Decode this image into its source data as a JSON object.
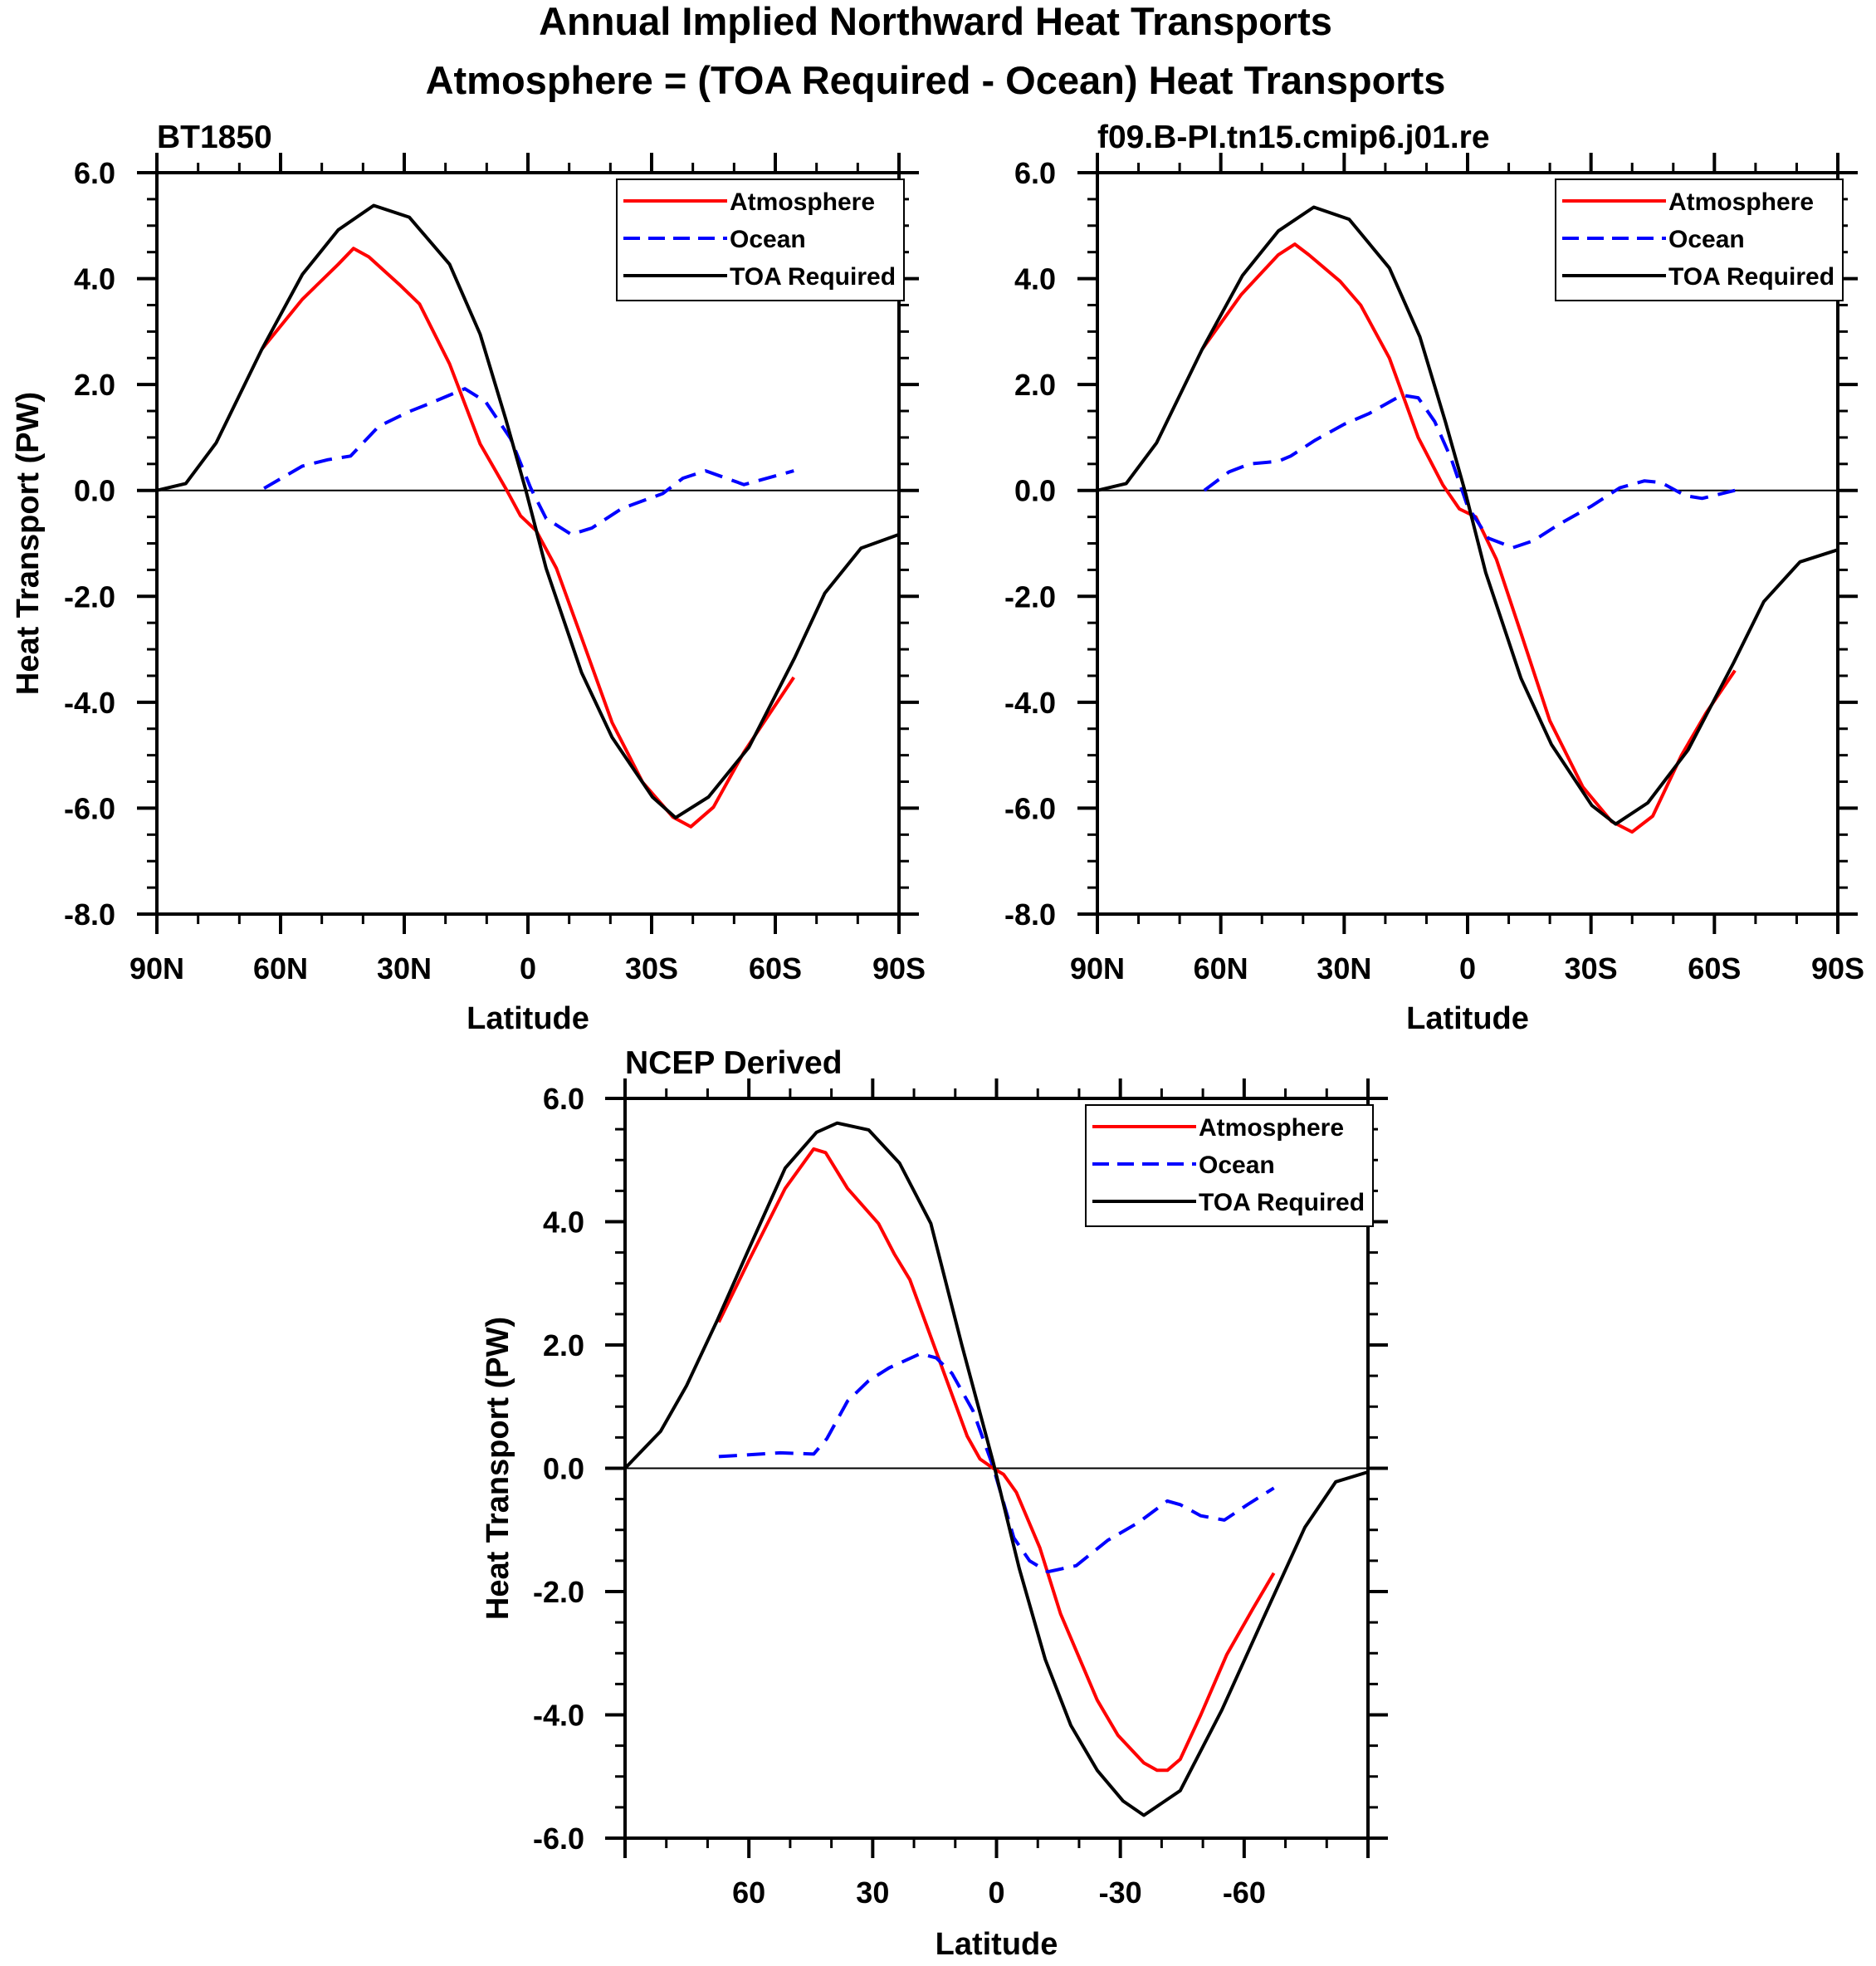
{
  "figure": {
    "title_line1": "Annual Implied Northward Heat Transports",
    "title_line2": "Atmosphere = (TOA Required - Ocean) Heat Transports"
  },
  "colors": {
    "atmosphere": "#ff0000",
    "ocean": "#0000ff",
    "toa": "#000000"
  },
  "chart_data": [
    {
      "type": "line",
      "title": "BT1850",
      "xlabel": "Latitude",
      "ylabel": "Heat Transport (PW)",
      "xlim": [
        90,
        -90
      ],
      "ylim": [
        -8,
        6
      ],
      "x_ticks": [
        90,
        60,
        30,
        0,
        -30,
        -60,
        -90
      ],
      "x_tick_labels": [
        "90N",
        "60N",
        "30N",
        "0",
        "30S",
        "60S",
        "90S"
      ],
      "y_ticks": [
        6,
        4,
        2,
        0,
        -2,
        -4,
        -6,
        -8
      ],
      "y_tick_labels": [
        "6.0",
        "4.0",
        "2.0",
        "0.0",
        "-2.0",
        "-4.0",
        "-6.0",
        "-8.0"
      ],
      "show_ylabel": true,
      "legend": "top-right",
      "series": [
        {
          "name": "Atmosphere",
          "style": "solid",
          "color_key": "atmosphere",
          "x": [
            64.5,
            54.7,
            46,
            42.3,
            38.6,
            31.2,
            26.3,
            19,
            11.6,
            5.4,
            1.8,
            -2,
            -6.9,
            -13,
            -20.4,
            -27.8,
            -35.2,
            -39.5,
            -45,
            -52.4,
            -64.5
          ],
          "y": [
            2.67,
            3.61,
            4.27,
            4.57,
            4.41,
            3.89,
            3.52,
            2.39,
            0.88,
            0.04,
            -0.48,
            -0.76,
            -1.47,
            -2.78,
            -4.38,
            -5.51,
            -6.17,
            -6.35,
            -5.98,
            -4.94,
            -3.53
          ]
        },
        {
          "name": "Ocean",
          "style": "dashed",
          "color_key": "ocean",
          "x": [
            64,
            54.7,
            48.5,
            43,
            36.2,
            28.8,
            23.9,
            15.3,
            10.3,
            4.2,
            -0.7,
            -4.4,
            -10.5,
            -15.5,
            -22.8,
            -32.7,
            -37.6,
            -43.1,
            -52.4,
            -64.5
          ],
          "y": [
            0.04,
            0.46,
            0.58,
            0.65,
            1.21,
            1.49,
            1.64,
            1.92,
            1.68,
            0.98,
            0.04,
            -0.53,
            -0.83,
            -0.71,
            -0.34,
            -0.06,
            0.23,
            0.37,
            0.11,
            0.37
          ]
        },
        {
          "name": "TOA Required",
          "style": "solid",
          "color_key": "toa",
          "x": [
            90,
            83,
            75.6,
            64.5,
            54.7,
            46,
            37.4,
            28.8,
            19,
            11.6,
            5.4,
            0.5,
            -4.4,
            -13,
            -20.4,
            -30.2,
            -35.8,
            -43.8,
            -53.6,
            -64.7,
            -72,
            -80.8,
            -90
          ],
          "y": [
            0,
            0.13,
            0.9,
            2.67,
            4.08,
            4.92,
            5.38,
            5.16,
            4.27,
            2.95,
            1.35,
            0,
            -1.47,
            -3.44,
            -4.66,
            -5.79,
            -6.18,
            -5.79,
            -4.85,
            -3.16,
            -1.94,
            -1.09,
            -0.83
          ]
        }
      ]
    },
    {
      "type": "line",
      "title": "f09.B-PI.tn15.cmip6.j01.re",
      "xlabel": "Latitude",
      "ylabel": "",
      "xlim": [
        90,
        -90
      ],
      "ylim": [
        -8,
        6
      ],
      "x_ticks": [
        90,
        60,
        30,
        0,
        -30,
        -60,
        -90
      ],
      "x_tick_labels": [
        "90N",
        "60N",
        "30N",
        "0",
        "30S",
        "60S",
        "90S"
      ],
      "y_ticks": [
        6,
        4,
        2,
        0,
        -2,
        -4,
        -6,
        -8
      ],
      "y_tick_labels": [
        "6.0",
        "4.0",
        "2.0",
        "0.0",
        "-2.0",
        "-4.0",
        "-6.0",
        "-8.0"
      ],
      "show_ylabel": false,
      "legend": "top-right",
      "series": [
        {
          "name": "Atmosphere",
          "style": "solid",
          "color_key": "atmosphere",
          "x": [
            64.5,
            55,
            46,
            42,
            38.6,
            31,
            26,
            19,
            12,
            6,
            2,
            -2,
            -7,
            -13,
            -20,
            -28,
            -35,
            -40,
            -45,
            -52,
            -58,
            -65
          ],
          "y": [
            2.67,
            3.7,
            4.45,
            4.65,
            4.45,
            3.95,
            3.5,
            2.5,
            1.0,
            0.1,
            -0.35,
            -0.5,
            -1.3,
            -2.7,
            -4.35,
            -5.6,
            -6.25,
            -6.45,
            -6.15,
            -5.0,
            -4.2,
            -3.4
          ]
        },
        {
          "name": "Ocean",
          "style": "dashed",
          "color_key": "ocean",
          "x": [
            64,
            58,
            53,
            46,
            43,
            37,
            30,
            24,
            16,
            12,
            8,
            4,
            0,
            -5,
            -11,
            -16,
            -22,
            -30,
            -37,
            -43,
            -47,
            -53,
            -57,
            -65
          ],
          "y": [
            0,
            0.35,
            0.5,
            0.55,
            0.65,
            0.95,
            1.25,
            1.45,
            1.8,
            1.75,
            1.3,
            0.6,
            -0.3,
            -0.9,
            -1.08,
            -0.95,
            -0.65,
            -0.3,
            0.05,
            0.18,
            0.15,
            -0.1,
            -0.15,
            0
          ]
        },
        {
          "name": "TOA Required",
          "style": "solid",
          "color_key": "toa",
          "x": [
            90,
            83,
            75.6,
            64.5,
            54.7,
            46,
            37.4,
            28.8,
            19,
            11.6,
            5.4,
            0.5,
            -4.4,
            -13,
            -20.4,
            -30.2,
            -36,
            -43.8,
            -53.6,
            -64.7,
            -72,
            -80.8,
            -90
          ],
          "y": [
            0,
            0.13,
            0.9,
            2.67,
            4.06,
            4.9,
            5.35,
            5.12,
            4.2,
            2.9,
            1.3,
            -0.05,
            -1.55,
            -3.55,
            -4.8,
            -5.95,
            -6.3,
            -5.9,
            -4.9,
            -3.25,
            -2.1,
            -1.35,
            -1.12
          ]
        }
      ]
    },
    {
      "type": "line",
      "title": "NCEP Derived",
      "xlabel": "Latitude",
      "ylabel": "Heat Transport (PW)",
      "xlim": [
        90,
        -90
      ],
      "ylim": [
        -6,
        6
      ],
      "x_ticks": [
        60,
        30,
        0,
        -30,
        -60
      ],
      "x_tick_labels": [
        "60",
        "30",
        "0",
        "-30",
        "-60"
      ],
      "y_ticks": [
        6,
        4,
        2,
        0,
        -2,
        -4,
        -6
      ],
      "y_tick_labels": [
        "6.0",
        "4.0",
        "2.0",
        "0.0",
        "-2.0",
        "-4.0",
        "-6.0"
      ],
      "show_ylabel": true,
      "legend": "top-right",
      "series": [
        {
          "name": "Atmosphere",
          "style": "solid",
          "color_key": "atmosphere",
          "x": [
            67.3,
            60,
            51.2,
            44.3,
            41.4,
            36.1,
            28.6,
            24.8,
            21,
            13.4,
            7.1,
            4,
            0.8,
            -1.7,
            -4.8,
            -10.5,
            -15.5,
            -24.4,
            -29.4,
            -35.7,
            -38.9,
            -41.4,
            -44.5,
            -49.5,
            -55.8,
            -62.1,
            -67.2
          ],
          "y": [
            2.37,
            3.37,
            4.54,
            5.18,
            5.12,
            4.54,
            3.97,
            3.48,
            3.06,
            1.67,
            0.52,
            0.15,
            0,
            -0.1,
            -0.39,
            -1.29,
            -2.36,
            -3.76,
            -4.33,
            -4.78,
            -4.9,
            -4.9,
            -4.72,
            -4.0,
            -3.02,
            -2.28,
            -1.7
          ]
        },
        {
          "name": "Ocean",
          "style": "dashed",
          "color_key": "ocean",
          "x": [
            67.3,
            52.4,
            44.3,
            41.1,
            36.1,
            31,
            26,
            18.4,
            14.6,
            10.8,
            5.7,
            0.8,
            -4.2,
            -8,
            -12.4,
            -19.3,
            -26.9,
            -34.4,
            -41.4,
            -44.5,
            -49.5,
            -55.2,
            -60.8,
            -67.2
          ],
          "y": [
            0.19,
            0.25,
            0.23,
            0.48,
            1.09,
            1.42,
            1.63,
            1.86,
            1.79,
            1.54,
            0.93,
            0.02,
            -1.13,
            -1.5,
            -1.68,
            -1.58,
            -1.17,
            -0.88,
            -0.53,
            -0.59,
            -0.77,
            -0.84,
            -0.59,
            -0.32
          ]
        },
        {
          "name": "TOA Required",
          "style": "solid",
          "color_key": "toa",
          "x": [
            90,
            81.4,
            75.1,
            67.6,
            60,
            51.2,
            43.6,
            38.6,
            31,
            23.5,
            15.9,
            8.4,
            0.8,
            -5.5,
            -11.8,
            -18,
            -24.4,
            -30.7,
            -35.7,
            -44.5,
            -54.6,
            -64.6,
            -74.7,
            -82.2,
            -90
          ],
          "y": [
            0,
            0.6,
            1.34,
            2.41,
            3.56,
            4.87,
            5.45,
            5.6,
            5.49,
            4.95,
            3.97,
            2.0,
            0.1,
            -1.62,
            -3.1,
            -4.17,
            -4.9,
            -5.4,
            -5.63,
            -5.23,
            -3.92,
            -2.44,
            -0.96,
            -0.22,
            -0.06
          ]
        }
      ]
    }
  ]
}
